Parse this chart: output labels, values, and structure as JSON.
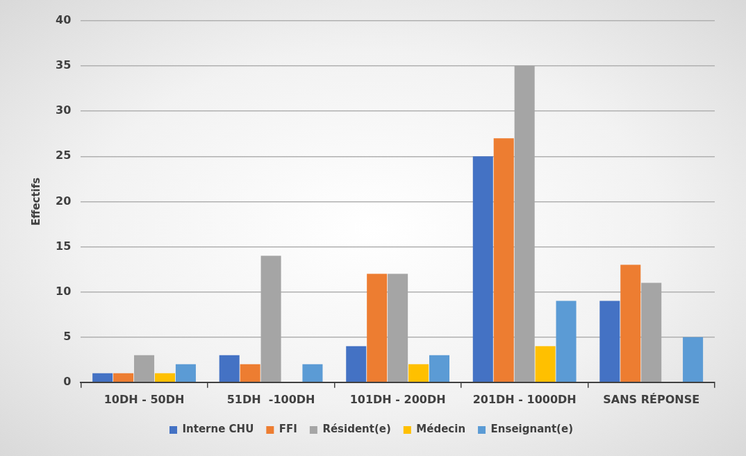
{
  "chart_data": {
    "type": "bar",
    "ylabel": "Effectifs",
    "categories": [
      "10DH - 50DH",
      "51DH  -100DH",
      "101DH - 200DH",
      "201DH - 1000DH",
      "SANS RÉPONSE"
    ],
    "series": [
      {
        "name": "Interne CHU",
        "color": "#4472c4",
        "values": [
          1,
          3,
          4,
          25,
          9
        ]
      },
      {
        "name": "FFI",
        "color": "#ed7d31",
        "values": [
          1,
          2,
          12,
          27,
          13
        ]
      },
      {
        "name": "Résident(e)",
        "color": "#a5a5a5",
        "values": [
          3,
          14,
          12,
          35,
          11
        ]
      },
      {
        "name": "Médecin",
        "color": "#ffc000",
        "values": [
          1,
          0,
          2,
          4,
          0
        ]
      },
      {
        "name": "Enseignant(e)",
        "color": "#5b9bd5",
        "values": [
          2,
          2,
          3,
          9,
          5
        ]
      }
    ],
    "ylim": [
      0,
      40
    ],
    "yticks": [
      0,
      5,
      10,
      15,
      20,
      25,
      30,
      35,
      40
    ],
    "grid": "y",
    "legend": "bottom"
  }
}
